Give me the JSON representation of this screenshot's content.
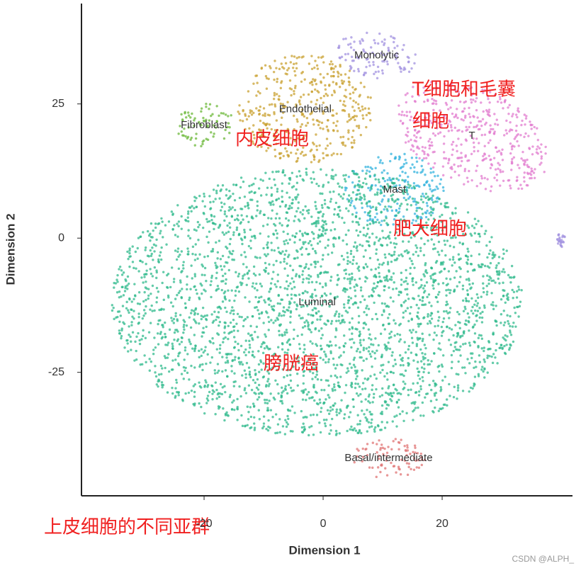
{
  "chart_data": {
    "type": "scatter",
    "x_label": "Dimension 1",
    "y_label": "Dimension 2",
    "xlim": [
      -40.6,
      41.9
    ],
    "ylim": [
      -48,
      43.7
    ],
    "xticks": [
      -20,
      0,
      20
    ],
    "yticks": [
      -25,
      0,
      25
    ],
    "clusters": [
      {
        "name": "Endothelial",
        "color": "#c9a232",
        "x": -3,
        "y": 24
      },
      {
        "name": "Fibroblast",
        "color": "#6cb83a",
        "x": -20,
        "y": 21
      },
      {
        "name": "Monolytic",
        "color": "#a393e0",
        "x": 9,
        "y": 34
      },
      {
        "name": "T",
        "color": "#e27ccf",
        "x": 25,
        "y": 19
      },
      {
        "name": "Mast",
        "color": "#33b3de",
        "x": 12,
        "y": 9
      },
      {
        "name": "Luminal",
        "color": "#2fb98c",
        "x": -1,
        "y": -12
      },
      {
        "name": "Basal/intermediate",
        "color": "#e07474",
        "x": 11,
        "y": -41
      },
      {
        "name": null,
        "color": "#a393e0",
        "x": 40,
        "y": -0.5
      }
    ]
  },
  "annotations": [
    "T细胞和毛囊",
    "细胞",
    "内皮细胞",
    "肥大细胞",
    "膀胱癌",
    "上皮细胞的不同亚群"
  ],
  "watermark": "CSDN @ALPH_"
}
